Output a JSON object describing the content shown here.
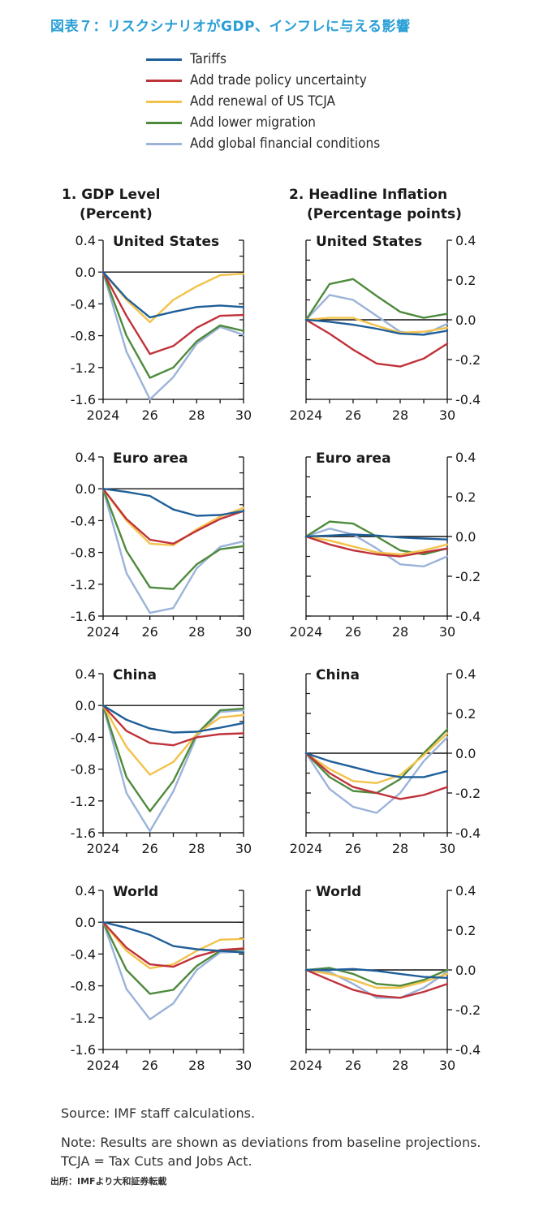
{
  "figure_title": "図表７：リスクシナリオがGDP、インフレに与える影響",
  "legend": [
    {
      "label": "Tariffs",
      "color": "#1f5f99"
    },
    {
      "label": "Add trade policy uncertainty",
      "color": "#c0323a"
    },
    {
      "label": "Add renewal of US TCJA",
      "color": "#f2c24a"
    },
    {
      "label": "Add lower migration",
      "color": "#4e8a3c"
    },
    {
      "label": "Add global financial conditions",
      "color": "#9bb3d9"
    }
  ],
  "columns": [
    {
      "title": "1. GDP Level",
      "unit": "(Percent)"
    },
    {
      "title": "2. Headline Inflation",
      "unit": "(Percentage points)"
    }
  ],
  "chart_data": [
    {
      "type": "line",
      "panel": "1. GDP Level",
      "region": "United States",
      "x": [
        2024,
        2025,
        2026,
        2027,
        2028,
        2029,
        2030
      ],
      "x_tick_labels": [
        "2024",
        "26",
        "28",
        "30"
      ],
      "y_tick_labels": [
        "0.4",
        "0.0",
        "-0.4",
        "-0.8",
        "-1.2",
        "-1.6"
      ],
      "ylim": [
        -1.6,
        0.4
      ],
      "series": [
        {
          "name": "Tariffs",
          "values": [
            0,
            -0.33,
            -0.57,
            -0.5,
            -0.44,
            -0.42,
            -0.44
          ]
        },
        {
          "name": "Add trade policy uncertainty",
          "values": [
            0,
            -0.55,
            -1.03,
            -0.93,
            -0.7,
            -0.55,
            -0.54
          ]
        },
        {
          "name": "Add renewal of US TCJA",
          "values": [
            0,
            -0.35,
            -0.63,
            -0.35,
            -0.18,
            -0.04,
            -0.02
          ]
        },
        {
          "name": "Add lower migration",
          "values": [
            0,
            -0.8,
            -1.33,
            -1.2,
            -0.87,
            -0.67,
            -0.74
          ]
        },
        {
          "name": "Add global financial conditions",
          "values": [
            0,
            -1.0,
            -1.6,
            -1.32,
            -0.9,
            -0.69,
            -0.79
          ]
        }
      ]
    },
    {
      "type": "line",
      "panel": "1. GDP Level",
      "region": "Euro area",
      "x": [
        2024,
        2025,
        2026,
        2027,
        2028,
        2029,
        2030
      ],
      "x_tick_labels": [
        "2024",
        "26",
        "28",
        "30"
      ],
      "y_tick_labels": [
        "0.4",
        "0.0",
        "-0.4",
        "-0.8",
        "-1.2",
        "-1.6"
      ],
      "ylim": [
        -1.6,
        0.4
      ],
      "series": [
        {
          "name": "Tariffs",
          "values": [
            0,
            -0.04,
            -0.09,
            -0.26,
            -0.34,
            -0.33,
            -0.28
          ]
        },
        {
          "name": "Add trade policy uncertainty",
          "values": [
            0,
            -0.38,
            -0.64,
            -0.69,
            -0.53,
            -0.38,
            -0.28
          ]
        },
        {
          "name": "Add renewal of US TCJA",
          "values": [
            0,
            -0.4,
            -0.69,
            -0.71,
            -0.51,
            -0.35,
            -0.24
          ]
        },
        {
          "name": "Add lower migration",
          "values": [
            0,
            -0.78,
            -1.24,
            -1.26,
            -0.95,
            -0.76,
            -0.72
          ]
        },
        {
          "name": "Add global financial conditions",
          "values": [
            0,
            -1.06,
            -1.56,
            -1.5,
            -1.0,
            -0.73,
            -0.66
          ]
        }
      ]
    },
    {
      "type": "line",
      "panel": "1. GDP Level",
      "region": "China",
      "x": [
        2024,
        2025,
        2026,
        2027,
        2028,
        2029,
        2030
      ],
      "x_tick_labels": [
        "2024",
        "26",
        "28",
        "30"
      ],
      "y_tick_labels": [
        "0.4",
        "0.0",
        "-0.4",
        "-0.8",
        "-1.2",
        "-1.6"
      ],
      "ylim": [
        -1.6,
        0.4
      ],
      "series": [
        {
          "name": "Tariffs",
          "values": [
            0,
            -0.18,
            -0.29,
            -0.34,
            -0.33,
            -0.28,
            -0.22
          ]
        },
        {
          "name": "Add trade policy uncertainty",
          "values": [
            0,
            -0.32,
            -0.47,
            -0.5,
            -0.4,
            -0.36,
            -0.35
          ]
        },
        {
          "name": "Add renewal of US TCJA",
          "values": [
            0,
            -0.52,
            -0.87,
            -0.71,
            -0.36,
            -0.15,
            -0.12
          ]
        },
        {
          "name": "Add lower migration",
          "values": [
            0,
            -0.9,
            -1.33,
            -0.95,
            -0.36,
            -0.06,
            -0.04
          ]
        },
        {
          "name": "Add global financial conditions",
          "values": [
            0,
            -1.1,
            -1.58,
            -1.08,
            -0.39,
            -0.08,
            -0.06
          ]
        }
      ]
    },
    {
      "type": "line",
      "panel": "1. GDP Level",
      "region": "World",
      "x": [
        2024,
        2025,
        2026,
        2027,
        2028,
        2029,
        2030
      ],
      "x_tick_labels": [
        "2024",
        "26",
        "28",
        "30"
      ],
      "y_tick_labels": [
        "0.4",
        "0.0",
        "-0.4",
        "-0.8",
        "-1.2",
        "-1.6"
      ],
      "ylim": [
        -1.6,
        0.4
      ],
      "series": [
        {
          "name": "Tariffs",
          "values": [
            0,
            -0.07,
            -0.16,
            -0.3,
            -0.34,
            -0.36,
            -0.38
          ]
        },
        {
          "name": "Add trade policy uncertainty",
          "values": [
            0,
            -0.32,
            -0.53,
            -0.56,
            -0.43,
            -0.35,
            -0.33
          ]
        },
        {
          "name": "Add renewal of US TCJA",
          "values": [
            0,
            -0.36,
            -0.58,
            -0.53,
            -0.36,
            -0.22,
            -0.21
          ]
        },
        {
          "name": "Add lower migration",
          "values": [
            0,
            -0.6,
            -0.9,
            -0.85,
            -0.55,
            -0.36,
            -0.34
          ]
        },
        {
          "name": "Add global financial conditions",
          "values": [
            0,
            -0.84,
            -1.22,
            -1.02,
            -0.6,
            -0.38,
            -0.37
          ]
        }
      ]
    },
    {
      "type": "line",
      "panel": "2. Headline Inflation",
      "region": "United States",
      "x": [
        2024,
        2025,
        2026,
        2027,
        2028,
        2029,
        2030
      ],
      "x_tick_labels": [
        "2024",
        "26",
        "28",
        "30"
      ],
      "y_tick_labels": [
        "0.4",
        "0.2",
        "0.0",
        "-0.2",
        "-0.4"
      ],
      "ylim": [
        -0.4,
        0.4
      ],
      "series": [
        {
          "name": "Tariffs",
          "values": [
            0,
            -0.01,
            -0.025,
            -0.045,
            -0.07,
            -0.075,
            -0.055
          ]
        },
        {
          "name": "Add trade policy uncertainty",
          "values": [
            0,
            -0.07,
            -0.15,
            -0.22,
            -0.235,
            -0.195,
            -0.12
          ]
        },
        {
          "name": "Add renewal of US TCJA",
          "values": [
            0,
            0.01,
            0.01,
            -0.03,
            -0.065,
            -0.06,
            -0.04
          ]
        },
        {
          "name": "Add lower migration",
          "values": [
            0,
            0.18,
            0.205,
            0.12,
            0.04,
            0.01,
            0.03
          ]
        },
        {
          "name": "Add global financial conditions",
          "values": [
            0,
            0.125,
            0.1,
            0.02,
            -0.06,
            -0.075,
            -0.02
          ]
        }
      ]
    },
    {
      "type": "line",
      "panel": "2. Headline Inflation",
      "region": "Euro area",
      "x": [
        2024,
        2025,
        2026,
        2027,
        2028,
        2029,
        2030
      ],
      "x_tick_labels": [
        "2024",
        "26",
        "28",
        "30"
      ],
      "y_tick_labels": [
        "0.4",
        "0.2",
        "0.0",
        "-0.2",
        "-0.4"
      ],
      "ylim": [
        -0.4,
        0.4
      ],
      "series": [
        {
          "name": "Tariffs",
          "values": [
            0,
            0.005,
            0.01,
            0.005,
            -0.005,
            -0.01,
            -0.015
          ]
        },
        {
          "name": "Add trade policy uncertainty",
          "values": [
            0,
            -0.04,
            -0.07,
            -0.09,
            -0.1,
            -0.08,
            -0.06
          ]
        },
        {
          "name": "Add renewal of US TCJA",
          "values": [
            0,
            -0.02,
            -0.05,
            -0.08,
            -0.09,
            -0.07,
            -0.04
          ]
        },
        {
          "name": "Add lower migration",
          "values": [
            0,
            0.075,
            0.065,
            0.0,
            -0.07,
            -0.09,
            -0.06
          ]
        },
        {
          "name": "Add global financial conditions",
          "values": [
            0,
            0.04,
            0.01,
            -0.06,
            -0.14,
            -0.15,
            -0.1
          ]
        }
      ]
    },
    {
      "type": "line",
      "panel": "2. Headline Inflation",
      "region": "China",
      "x": [
        2024,
        2025,
        2026,
        2027,
        2028,
        2029,
        2030
      ],
      "x_tick_labels": [
        "2024",
        "26",
        "28",
        "30"
      ],
      "y_tick_labels": [
        "0.4",
        "0.2",
        "0.0",
        "-0.2",
        "-0.4"
      ],
      "ylim": [
        -0.4,
        0.4
      ],
      "series": [
        {
          "name": "Tariffs",
          "values": [
            0,
            -0.04,
            -0.07,
            -0.1,
            -0.12,
            -0.12,
            -0.09
          ]
        },
        {
          "name": "Add trade policy uncertainty",
          "values": [
            0,
            -0.1,
            -0.17,
            -0.2,
            -0.23,
            -0.21,
            -0.17
          ]
        },
        {
          "name": "Add renewal of US TCJA",
          "values": [
            0,
            -0.08,
            -0.14,
            -0.15,
            -0.11,
            -0.01,
            0.1
          ]
        },
        {
          "name": "Add lower migration",
          "values": [
            0,
            -0.12,
            -0.19,
            -0.2,
            -0.13,
            0.0,
            0.12
          ]
        },
        {
          "name": "Add global financial conditions",
          "values": [
            0,
            -0.18,
            -0.27,
            -0.3,
            -0.2,
            -0.04,
            0.08
          ]
        }
      ]
    },
    {
      "type": "line",
      "panel": "2. Headline Inflation",
      "region": "World",
      "x": [
        2024,
        2025,
        2026,
        2027,
        2028,
        2029,
        2030
      ],
      "x_tick_labels": [
        "2024",
        "26",
        "28",
        "30"
      ],
      "y_tick_labels": [
        "0.4",
        "0.2",
        "0.0",
        "-0.2",
        "-0.4"
      ],
      "ylim": [
        -0.4,
        0.4
      ],
      "series": [
        {
          "name": "Tariffs",
          "values": [
            0,
            0.0,
            0.005,
            -0.005,
            -0.02,
            -0.035,
            -0.04
          ]
        },
        {
          "name": "Add trade policy uncertainty",
          "values": [
            0,
            -0.05,
            -0.1,
            -0.13,
            -0.14,
            -0.11,
            -0.07
          ]
        },
        {
          "name": "Add renewal of US TCJA",
          "values": [
            0,
            -0.02,
            -0.05,
            -0.09,
            -0.09,
            -0.06,
            -0.02
          ]
        },
        {
          "name": "Add lower migration",
          "values": [
            0,
            0.01,
            -0.02,
            -0.07,
            -0.08,
            -0.05,
            0.0
          ]
        },
        {
          "name": "Add global financial conditions",
          "values": [
            0,
            -0.01,
            -0.07,
            -0.14,
            -0.14,
            -0.09,
            -0.01
          ]
        }
      ]
    }
  ],
  "footer": {
    "source": "Source: IMF staff calculations.",
    "note1": "Note: Results are shown as deviations from baseline projections.",
    "note2": "TCJA = Tax Cuts and Jobs Act.",
    "jp_source": "出所：IMFより大和証券転載"
  }
}
